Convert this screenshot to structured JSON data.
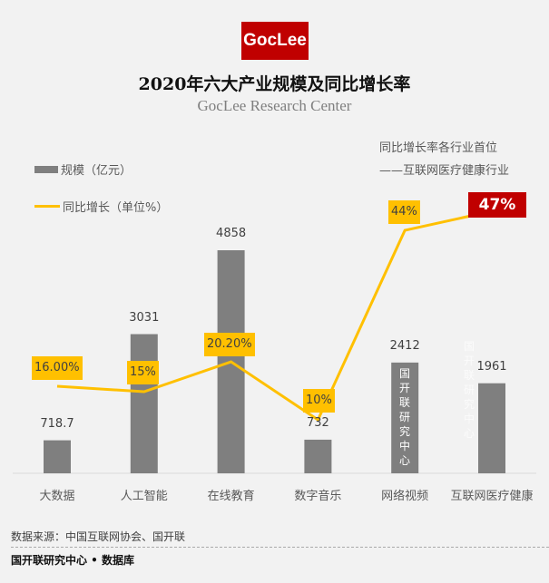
{
  "logo": {
    "text": "GocLee",
    "color": "#c00000"
  },
  "header": {
    "title": "2020年六大产业规模及同比增长率",
    "subtitle": "GocLee Research Center"
  },
  "note": {
    "line1": "同比增长率各行业首位",
    "line2": "——互联网医疗健康行业"
  },
  "watermark": "国开联研究中心",
  "footer": {
    "source": "数据来源：中国互联网协会、国开联",
    "brand": "国开联研究中心 • 数据库"
  },
  "chart_data": {
    "type": "bar",
    "title": "2020年六大产业规模及同比增长率",
    "subtitle": "GocLee Research Center",
    "categories": [
      "大数据",
      "人工智能",
      "在线教育",
      "数字音乐",
      "网络视频",
      "互联网医疗健康"
    ],
    "series": [
      {
        "name": "规模（亿元）",
        "type": "bar",
        "color": "#7f7f7f",
        "values": [
          718.7,
          3031,
          4858,
          732,
          2412,
          1961
        ],
        "labels": [
          "718.7",
          "3031",
          "4858",
          "732",
          "2412",
          "1961"
        ]
      },
      {
        "name": "同比增长（单位%）",
        "type": "line",
        "color": "#ffc000",
        "values": [
          16.0,
          15,
          20.2,
          10,
          44,
          47
        ],
        "labels": [
          "16.00%",
          "15%",
          "20.20%",
          "10%",
          "44%",
          "47%"
        ],
        "highlight_index": 5,
        "highlight_color": "#c00000"
      }
    ],
    "legend": "top-left",
    "grid": false,
    "xlabel": "",
    "ylabel": ""
  }
}
